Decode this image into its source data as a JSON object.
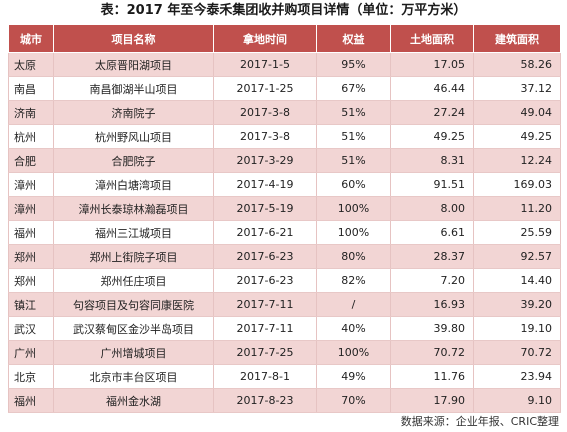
{
  "title": "表：2017 年至今泰禾集团收并购项目详情（单位：万平方米）",
  "columns": [
    "城市",
    "项目名称",
    "拿地时间",
    "权益",
    "土地面积",
    "建筑面积"
  ],
  "rows": [
    [
      "太原",
      "太原晋阳湖项目",
      "2017-1-5",
      "95%",
      "17.05",
      "58.26"
    ],
    [
      "南昌",
      "南昌御湖半山项目",
      "2017-1-25",
      "67%",
      "46.44",
      "37.12"
    ],
    [
      "济南",
      "济南院子",
      "2017-3-8",
      "51%",
      "27.24",
      "49.04"
    ],
    [
      "杭州",
      "杭州野风山项目",
      "2017-3-8",
      "51%",
      "49.25",
      "49.25"
    ],
    [
      "合肥",
      "合肥院子",
      "2017-3-29",
      "51%",
      "8.31",
      "12.24"
    ],
    [
      "漳州",
      "漳州白塘湾项目",
      "2017-4-19",
      "60%",
      "91.51",
      "169.03"
    ],
    [
      "漳州",
      "漳州长泰琼林瀚磊项目",
      "2017-5-19",
      "100%",
      "8.00",
      "11.20"
    ],
    [
      "福州",
      "福州三江城项目",
      "2017-6-21",
      "100%",
      "6.61",
      "25.59"
    ],
    [
      "郑州",
      "郑州上街院子项目",
      "2017-6-23",
      "80%",
      "28.37",
      "92.57"
    ],
    [
      "郑州",
      "郑州任庄项目",
      "2017-6-23",
      "82%",
      "7.20",
      "14.40"
    ],
    [
      "镇江",
      "句容项目及句容同康医院",
      "2017-7-11",
      "/",
      "16.93",
      "39.20"
    ],
    [
      "武汉",
      "武汉蔡甸区金沙半岛项目",
      "2017-7-11",
      "40%",
      "39.80",
      "19.10"
    ],
    [
      "广州",
      "广州增城项目",
      "2017-7-25",
      "100%",
      "70.72",
      "70.72"
    ],
    [
      "北京",
      "北京市丰台区项目",
      "2017-8-1",
      "49%",
      "11.76",
      "23.94"
    ],
    [
      "福州",
      "福州金水湖",
      "2017-8-23",
      "70%",
      "17.90",
      "9.10"
    ]
  ],
  "source": "数据来源：企业年报、CRIC整理",
  "colors": {
    "header_bg": "#c0504d",
    "stripe": "#f2d5d4"
  }
}
